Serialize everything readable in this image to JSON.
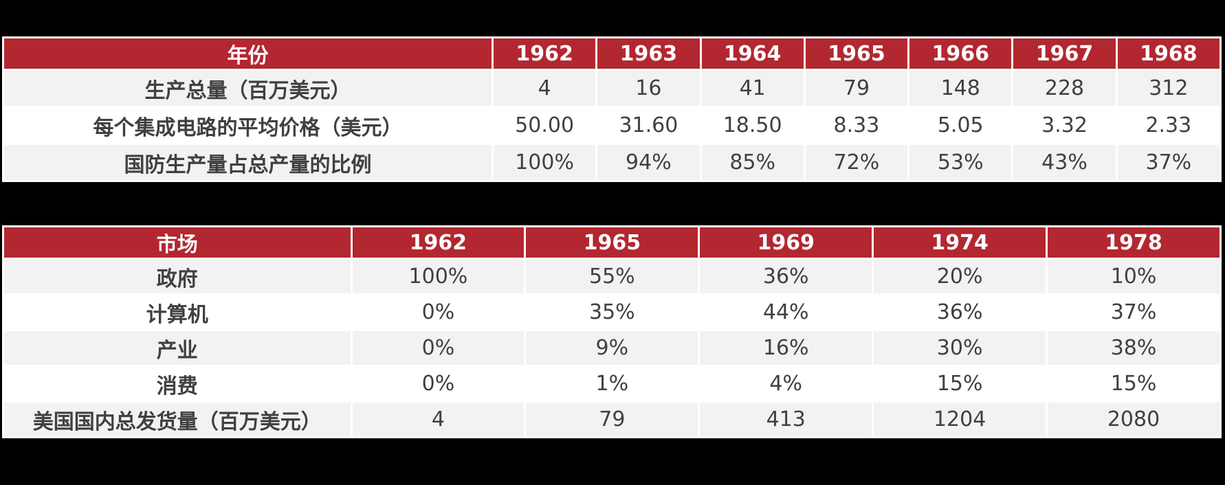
{
  "colors": {
    "background": "#000000",
    "card_bg": "#FFFFFF",
    "header_bg": "#B22730",
    "header_text": "#FFFFFF",
    "row_alt_bg": "#F2F2F2",
    "row_bg": "#FFFFFF",
    "cell_text": "#404040",
    "grid": "#FFFFFF"
  },
  "chart_data": [
    {
      "type": "table",
      "name": "ic-production-by-year",
      "header": [
        "年份",
        "1962",
        "1963",
        "1964",
        "1965",
        "1966",
        "1967",
        "1968"
      ],
      "rows": [
        [
          "生产总量（百万美元）",
          "4",
          "16",
          "41",
          "79",
          "148",
          "228",
          "312"
        ],
        [
          "每个集成电路的平均价格（美元）",
          "50.00",
          "31.60",
          "18.50",
          "8.33",
          "5.05",
          "3.32",
          "2.33"
        ],
        [
          "国防生产量占总产量的比例",
          "100%",
          "94%",
          "85%",
          "72%",
          "53%",
          "43%",
          "37%"
        ]
      ],
      "layout": {
        "label_col_pct": 40.2,
        "grid": true,
        "header_position": "top"
      }
    },
    {
      "type": "table",
      "name": "ic-market-share-by-year",
      "header": [
        "市场",
        "1962",
        "1965",
        "1969",
        "1974",
        "1978"
      ],
      "rows": [
        [
          "政府",
          "100%",
          "55%",
          "36%",
          "20%",
          "10%"
        ],
        [
          "计算机",
          "0%",
          "35%",
          "44%",
          "36%",
          "37%"
        ],
        [
          "产业",
          "0%",
          "9%",
          "16%",
          "30%",
          "38%"
        ],
        [
          "消费",
          "0%",
          "1%",
          "4%",
          "15%",
          "15%"
        ],
        [
          "美国国内总发货量（百万美元）",
          "4",
          "79",
          "413",
          "1204",
          "2080"
        ]
      ],
      "layout": {
        "label_col_pct": 28.6,
        "grid": true,
        "header_position": "top"
      }
    }
  ]
}
